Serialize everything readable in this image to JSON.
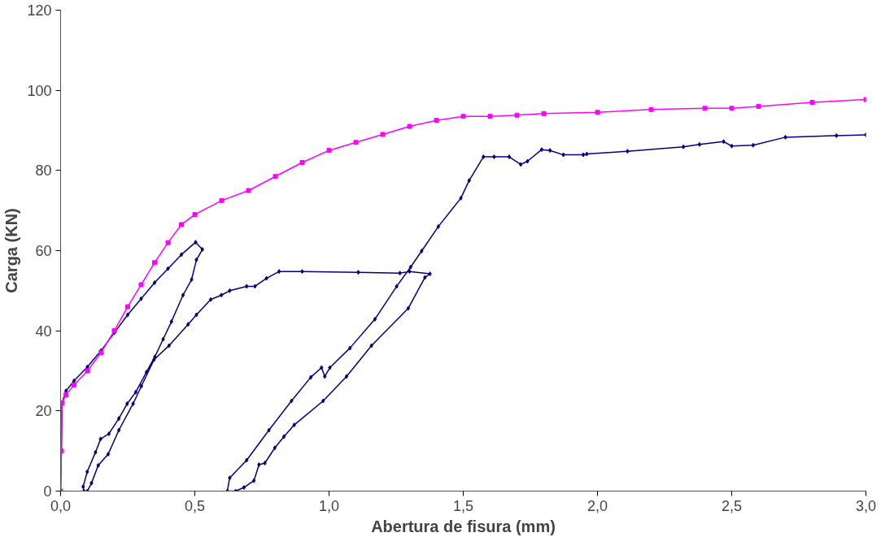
{
  "chart_data": {
    "type": "line",
    "xlabel": "Abertura de fisura (mm)",
    "ylabel": "Carga (KN)",
    "xlim": [
      0,
      3
    ],
    "xticks": [
      {
        "value": 0,
        "label": "0,0"
      },
      {
        "value": 0.5,
        "label": "0,5"
      },
      {
        "value": 1,
        "label": "1,0"
      },
      {
        "value": 1.5,
        "label": "1,5"
      },
      {
        "value": 2,
        "label": "2,0"
      },
      {
        "value": 2.5,
        "label": "2,5"
      },
      {
        "value": 3,
        "label": "3,0"
      }
    ],
    "ylim": [
      0,
      120
    ],
    "yticks": [
      0,
      20,
      40,
      60,
      80,
      100,
      120
    ],
    "grid": false,
    "line_style": "solid",
    "series": [
      {
        "color": "#000080",
        "marker": "diamond",
        "x": [
          0,
          0.003,
          0.005,
          0.02,
          0.05,
          0.1,
          0.15,
          0.2,
          0.25,
          0.3,
          0.35,
          0.4,
          0.45,
          0.503,
          0.528,
          0.506,
          0.488,
          0.456,
          0.413,
          0.382,
          0.351,
          0.32,
          0.28,
          0.248,
          0.217,
          0.18,
          0.149,
          0.13,
          0.099,
          0.084,
          0.087,
          0.1,
          0.115,
          0.14,
          0.177,
          0.217,
          0.27,
          0.301,
          0.348,
          0.404,
          0.475,
          0.506,
          0.559,
          0.599,
          0.63,
          0.693,
          0.724,
          0.767,
          0.814,
          0.9,
          1.109,
          1.264,
          1.3,
          1.376,
          1.357,
          1.295,
          1.158,
          1.065,
          0.978,
          0.87,
          0.832,
          0.798,
          0.761,
          0.739,
          0.72,
          0.683,
          0.652,
          0.621,
          0.63,
          0.693,
          0.776,
          0.86,
          0.932,
          0.972,
          0.984,
          1.003,
          1.078,
          1.171,
          1.252,
          1.304,
          1.345,
          1.407,
          1.491,
          1.522,
          1.575,
          1.615,
          1.671,
          1.714,
          1.739,
          1.792,
          1.823,
          1.873,
          1.947,
          1.96,
          2.112,
          2.32,
          2.38,
          2.47,
          2.5,
          2.58,
          2.7,
          2.89,
          3.0
        ],
        "values": [
          0,
          10,
          22,
          25,
          27.5,
          31,
          35,
          39.5,
          44,
          48,
          52,
          55.5,
          59,
          62.1,
          60.3,
          57.7,
          52.8,
          48.9,
          42.3,
          37.9,
          33.5,
          29.7,
          24.7,
          21.8,
          18.1,
          14.3,
          13,
          9.7,
          4.8,
          1.1,
          0,
          0,
          2,
          6.4,
          9.2,
          15.2,
          21.8,
          26.2,
          32.8,
          36.3,
          41.6,
          44,
          47.8,
          48.9,
          50,
          51.1,
          51.1,
          53.1,
          54.8,
          54.8,
          54.6,
          54.4,
          54.8,
          54.2,
          53.3,
          45.6,
          36.3,
          28.6,
          22.5,
          16.5,
          13.6,
          10.8,
          7,
          6.6,
          2.6,
          0.9,
          0,
          0,
          3.3,
          7.7,
          15.2,
          22.5,
          28.4,
          30.8,
          28.6,
          30.8,
          35.7,
          42.9,
          51.1,
          55.9,
          59.9,
          66,
          73.1,
          77.5,
          83.4,
          83.4,
          83.4,
          81.5,
          82.3,
          85.2,
          85,
          83.9,
          83.9,
          84.1,
          84.8,
          85.9,
          86.5,
          87.2,
          86.1,
          86.3,
          88.3,
          88.7,
          88.9
        ]
      },
      {
        "color": "#ff00ff",
        "marker": "square",
        "x": [
          0,
          0.003,
          0.005,
          0.02,
          0.05,
          0.1,
          0.15,
          0.2,
          0.25,
          0.3,
          0.35,
          0.4,
          0.45,
          0.5,
          0.6,
          0.7,
          0.8,
          0.9,
          1.0,
          1.1,
          1.2,
          1.3,
          1.4,
          1.5,
          1.6,
          1.7,
          1.8,
          2.0,
          2.2,
          2.4,
          2.5,
          2.6,
          2.8,
          3.0
        ],
        "values": [
          0,
          10,
          22,
          24,
          26.5,
          30,
          34.5,
          40,
          46,
          51.5,
          57,
          62,
          66.5,
          69,
          72.5,
          75,
          78.5,
          82,
          85,
          87,
          89,
          91,
          92.5,
          93.5,
          93.5,
          93.8,
          94.2,
          94.5,
          95.2,
          95.5,
          95.5,
          96,
          97,
          97.7
        ]
      }
    ]
  }
}
